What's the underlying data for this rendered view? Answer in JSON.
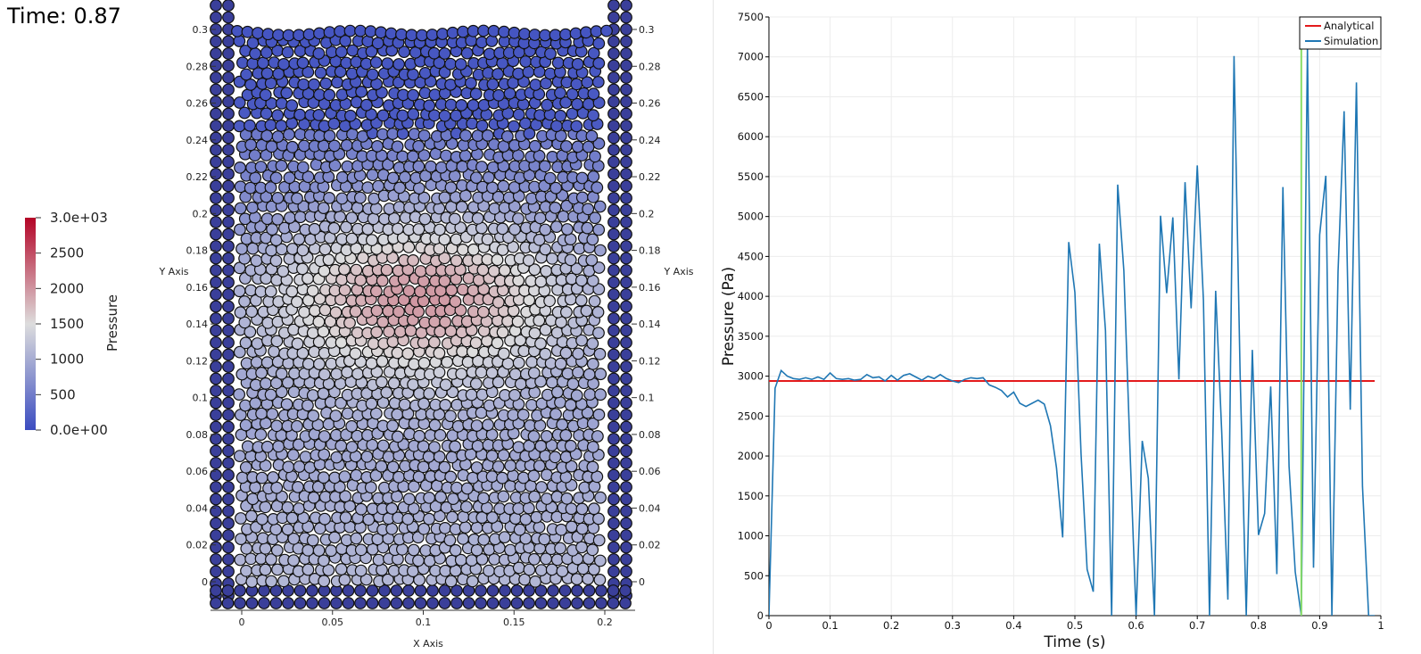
{
  "time_annotation": "Time: 0.87",
  "colorbar": {
    "title": "Pressure",
    "min": 0,
    "max": 3000,
    "ticks": [
      {
        "value": 3000,
        "label": "3.0e+03"
      },
      {
        "value": 2500,
        "label": "2500"
      },
      {
        "value": 2000,
        "label": "2000"
      },
      {
        "value": 1500,
        "label": "1500"
      },
      {
        "value": 1000,
        "label": "1000"
      },
      {
        "value": 500,
        "label": "500"
      },
      {
        "value": 0,
        "label": "0.0e+00"
      }
    ],
    "colormap": "Cool to Warm"
  },
  "particle_view": {
    "x_axis_label": "X Axis",
    "y_axis_label_left": "Y Axis",
    "y_axis_label_right": "Y Axis",
    "x_ticks": [
      0,
      0.05,
      0.1,
      0.15,
      0.2
    ],
    "x_tick_labels": [
      "0",
      "0.05",
      "0.1",
      "0.15",
      "0.2"
    ],
    "y_ticks": [
      0,
      0.02,
      0.04,
      0.06,
      0.08,
      0.1,
      0.12,
      0.14,
      0.16,
      0.18,
      0.2,
      0.22,
      0.24,
      0.26,
      0.28,
      0.3
    ],
    "y_tick_labels": [
      "0",
      "0.02",
      "0.04",
      "0.06",
      "0.08",
      "0.1",
      "0.12",
      "0.14",
      "0.16",
      "0.18",
      "0.2",
      "0.22",
      "0.24",
      "0.26",
      "0.28",
      "0.3"
    ],
    "wall_color": "#3a3f9a",
    "particle_edge_color": "#111111"
  },
  "chart_data": {
    "type": "line",
    "title": "",
    "xlabel": "Time (s)",
    "ylabel": "Pressure (Pa)",
    "xlim": [
      0,
      1
    ],
    "ylim": [
      0,
      7500
    ],
    "x_ticks": [
      0,
      0.1,
      0.2,
      0.3,
      0.4,
      0.5,
      0.6,
      0.7,
      0.8,
      0.9,
      1
    ],
    "x_tick_labels": [
      "0",
      "0.1",
      "0.2",
      "0.3",
      "0.4",
      "0.5",
      "0.6",
      "0.7",
      "0.8",
      "0.9",
      "1"
    ],
    "y_ticks": [
      0,
      500,
      1000,
      1500,
      2000,
      2500,
      3000,
      3500,
      4000,
      4500,
      5000,
      5500,
      6000,
      6500,
      7000,
      7500
    ],
    "y_tick_labels": [
      "0",
      "500",
      "1000",
      "1500",
      "2000",
      "2500",
      "3000",
      "3500",
      "4000",
      "4500",
      "5000",
      "5500",
      "6000",
      "6500",
      "7000",
      "7500"
    ],
    "grid": true,
    "legend_position": "top-right",
    "current_time_marker": 0.87,
    "current_time_color": "#88dd66",
    "series": [
      {
        "name": "Analytical",
        "color": "#e31a1c",
        "x": [
          0,
          0.99
        ],
        "y": [
          2940,
          2940
        ]
      },
      {
        "name": "Simulation",
        "color": "#1f77b4",
        "x": [
          0,
          0.01,
          0.02,
          0.03,
          0.04,
          0.05,
          0.06,
          0.07,
          0.08,
          0.09,
          0.1,
          0.11,
          0.12,
          0.13,
          0.14,
          0.15,
          0.16,
          0.17,
          0.18,
          0.19,
          0.2,
          0.21,
          0.22,
          0.23,
          0.24,
          0.25,
          0.26,
          0.27,
          0.28,
          0.29,
          0.3,
          0.31,
          0.32,
          0.33,
          0.34,
          0.35,
          0.36,
          0.37,
          0.38,
          0.39,
          0.4,
          0.41,
          0.42,
          0.43,
          0.44,
          0.45,
          0.46,
          0.47,
          0.48,
          0.49,
          0.5,
          0.51,
          0.52,
          0.53,
          0.54,
          0.55,
          0.56,
          0.57,
          0.58,
          0.59,
          0.6,
          0.61,
          0.62,
          0.63,
          0.64,
          0.65,
          0.66,
          0.67,
          0.68,
          0.69,
          0.7,
          0.71,
          0.72,
          0.73,
          0.74,
          0.75,
          0.76,
          0.77,
          0.78,
          0.79,
          0.8,
          0.81,
          0.82,
          0.83,
          0.84,
          0.85,
          0.86,
          0.87,
          0.88,
          0.89,
          0.9,
          0.91,
          0.92,
          0.93,
          0.94,
          0.95,
          0.96,
          0.97,
          0.98,
          0.99
        ],
        "y": [
          0,
          2850,
          3070,
          3000,
          2970,
          2960,
          2980,
          2960,
          2990,
          2960,
          3040,
          2970,
          2960,
          2970,
          2950,
          2960,
          3020,
          2980,
          2990,
          2940,
          3010,
          2950,
          3010,
          3030,
          2990,
          2950,
          3000,
          2970,
          3020,
          2970,
          2940,
          2920,
          2960,
          2980,
          2970,
          2980,
          2890,
          2860,
          2820,
          2740,
          2800,
          2660,
          2620,
          2660,
          2700,
          2650,
          2380,
          1850,
          980,
          4680,
          4050,
          2030,
          580,
          300,
          4660,
          3570,
          0,
          5400,
          4320,
          2100,
          0,
          2190,
          1720,
          0,
          5010,
          4040,
          4990,
          2960,
          5430,
          3850,
          5640,
          3950,
          0,
          4070,
          2300,
          200,
          7010,
          3040,
          0,
          3330,
          1010,
          1280,
          2870,
          520,
          5370,
          1870,
          550,
          0,
          7120,
          600,
          4770,
          5510,
          0,
          4310,
          6320,
          2580,
          6680,
          1620,
          0,
          0
        ]
      }
    ]
  }
}
